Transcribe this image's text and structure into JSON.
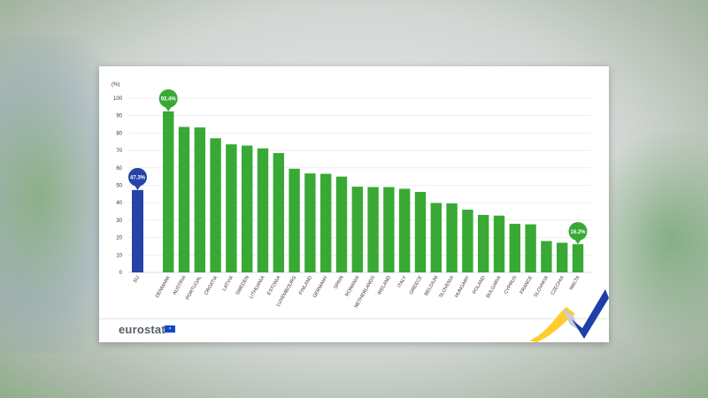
{
  "chart_data": {
    "type": "bar",
    "unit_label": "(%)",
    "ylim": [
      0,
      100
    ],
    "yticks": [
      0,
      10,
      20,
      30,
      40,
      50,
      60,
      70,
      80,
      90,
      100
    ],
    "categories": [
      "EU",
      "DENMARK",
      "AUSTRIA",
      "PORTUGAL",
      "CROATIA",
      "LATVIA",
      "SWEDEN",
      "LITHUANIA",
      "ESTONIA",
      "LUXEMBOURG",
      "FINLAND",
      "GERMANY",
      "SPAIN",
      "ROMANIA",
      "NETHERLANDS",
      "IRELAND",
      "ITALY",
      "GREECE",
      "BELGIUM",
      "SLOVENIA",
      "HUNGARY",
      "POLAND",
      "BULGARIA",
      "CYPRUS",
      "FRANCE",
      "SLOVAKIA",
      "CZECHIA",
      "MALTA"
    ],
    "values": [
      47.3,
      92.4,
      83.5,
      83.2,
      77,
      73.5,
      72.8,
      71.2,
      68.5,
      59.5,
      56.8,
      56.6,
      55,
      49.2,
      49,
      49,
      48,
      46.2,
      39.8,
      39.6,
      36,
      33,
      32.6,
      27.9,
      27.6,
      18,
      17,
      16.2
    ],
    "colors": {
      "eu": "#2644a8",
      "country": "#39a935",
      "grid": "#e3e3e3"
    },
    "highlight_labels": [
      {
        "category": "EU",
        "text": "47.3%",
        "color": "#2644a8"
      },
      {
        "category": "DENMARK",
        "text": "92.4%",
        "color": "#39a935"
      },
      {
        "category": "MALTA",
        "text": "16.2%",
        "color": "#39a935"
      }
    ]
  },
  "footer": {
    "logo_text": "eurostat",
    "flag_icon": "eu-flag-icon",
    "decoration_icon": "eurostat-ribbon-icon"
  }
}
